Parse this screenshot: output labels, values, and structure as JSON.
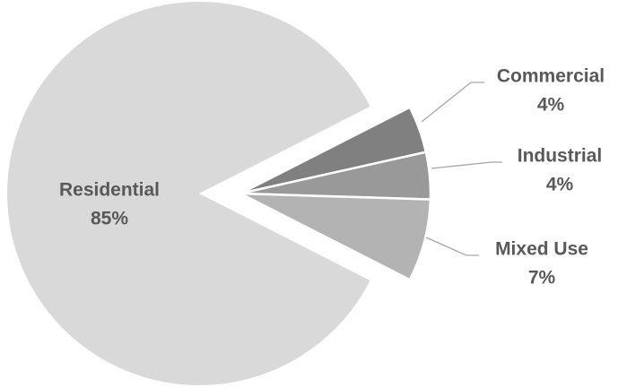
{
  "chart_data": {
    "type": "pie",
    "title": "",
    "labels": [
      "Residential",
      "Commercial",
      "Industrial",
      "Mixed Use"
    ],
    "values": [
      85,
      4,
      4,
      7
    ],
    "value_labels": [
      "85%",
      "4%",
      "4%",
      "7%"
    ],
    "colors": [
      "#d9d9d9",
      "#808080",
      "#999999",
      "#b3b3b3"
    ],
    "legend": "none",
    "exploded": [
      "Commercial",
      "Industrial",
      "Mixed Use"
    ]
  }
}
